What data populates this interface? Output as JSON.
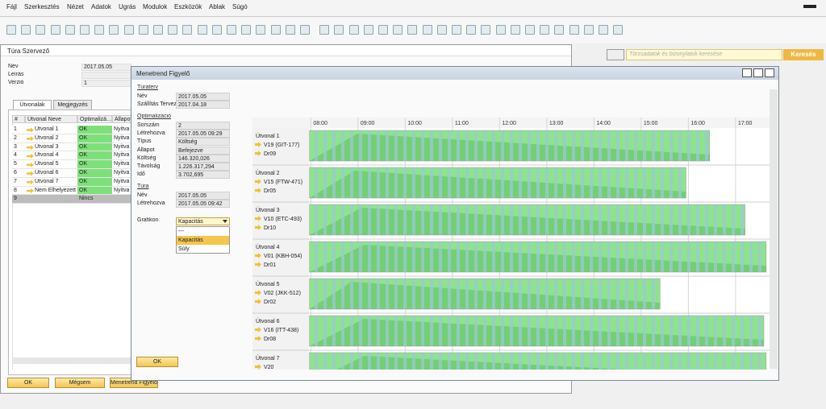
{
  "menu": [
    "Fájl",
    "Szerkesztés",
    "Nézet",
    "Adatok",
    "Ugrás",
    "Modulok",
    "Eszközök",
    "Ablak",
    "Súgó"
  ],
  "search": {
    "placeholder": "Törzsadatok és bizonylatok keresése",
    "button": "Keresés"
  },
  "tour_planner": {
    "title": "Túra Szervező",
    "fields": [
      {
        "label": "Név",
        "value": "2017.05.05"
      },
      {
        "label": "Leírás"
      },
      {
        "label": "Verzió",
        "value": "1"
      }
    ],
    "tabs": [
      "Útvonalak",
      "Megjegyzés"
    ],
    "table": {
      "columns": [
        "#",
        "Útvonal Neve",
        "Optimalizá...",
        "Állapot"
      ],
      "rows": [
        [
          "1",
          "Útvonal 1",
          "OK",
          "Nyitva"
        ],
        [
          "2",
          "Útvonal 2",
          "OK",
          "Nyitva"
        ],
        [
          "3",
          "Útvonal 3",
          "OK",
          "Nyitva"
        ],
        [
          "4",
          "Útvonal 4",
          "OK",
          "Nyitva"
        ],
        [
          "5",
          "Útvonal 5",
          "OK",
          "Nyitva"
        ],
        [
          "6",
          "Útvonal 6",
          "OK",
          "Nyitva"
        ],
        [
          "7",
          "Útvonal 7",
          "OK",
          "Nyitva"
        ],
        [
          "8",
          "Nem Elhelyezett",
          "OK",
          "Nyitva"
        ],
        [
          "9",
          null,
          "Nincs",
          null
        ]
      ]
    },
    "buttons": [
      "OK",
      "Mégsem",
      "Menetrend Figyelő"
    ]
  },
  "schedule_monitor": {
    "title": "Menetrend Figyelő",
    "sections": [
      {
        "heading": "Túraterv",
        "fields": [
          {
            "label": "Név",
            "value": "2017.05.05"
          },
          {
            "label": "Szállítás Terveze",
            "value": "2017.04.18"
          }
        ]
      },
      {
        "heading": "Optimalizáció",
        "fields": [
          {
            "label": "Sorszám",
            "value": "2"
          },
          {
            "label": "Létrehozva",
            "value": "2017.05.05 09:29"
          },
          {
            "label": "Típus",
            "value": "Költség"
          },
          {
            "label": "Állapot",
            "value": "Befejezve"
          },
          {
            "label": "Költség",
            "value": "146.320,026"
          },
          {
            "label": "Távolság",
            "value": "1.226.317,294"
          },
          {
            "label": "Idő",
            "value": "3.702,695"
          }
        ]
      },
      {
        "heading": "Túra",
        "fields": [
          {
            "label": "Név",
            "value": "2017.05.05"
          },
          {
            "label": "Létrehozva",
            "value": "2017.05.05 09:42"
          }
        ]
      }
    ],
    "chart_selector": {
      "label": "Grafikon",
      "selected": "Kapacitás",
      "options": [
        "---",
        "Kapacitás",
        "Súly"
      ]
    },
    "ok": "OK",
    "gantt": {
      "type": "gantt",
      "xlim": [
        7.96,
        17.72
      ],
      "xticks": [
        {
          "value": 8,
          "label": "08:00"
        },
        {
          "value": 9,
          "label": "09:00"
        },
        {
          "value": 10,
          "label": "10:00"
        },
        {
          "value": 11,
          "label": "11:00"
        },
        {
          "value": 12,
          "label": "12:00"
        },
        {
          "value": 13,
          "label": "13:00"
        },
        {
          "value": 14,
          "label": "14:00"
        },
        {
          "value": 15,
          "label": "15:00"
        },
        {
          "value": 16,
          "label": "16:00"
        },
        {
          "value": 17,
          "label": "17:00"
        }
      ],
      "rows": [
        {
          "name": "Útvonal 1",
          "vehicle": "V19  (GIT-177)",
          "driver": "Dr09",
          "start": 7.97,
          "end": 16.45
        },
        {
          "name": "Útvonal 2",
          "vehicle": "V15  (FTW-471)",
          "driver": "Dr05",
          "start": 7.97,
          "end": 15.95
        },
        {
          "name": "Útvonal 3",
          "vehicle": "V10  (ETC-493)",
          "driver": "Dr10",
          "start": 7.97,
          "end": 17.2
        },
        {
          "name": "Útvonal 4",
          "vehicle": "V01  (KBH-054)",
          "driver": "Dr01",
          "start": 7.97,
          "end": 17.65
        },
        {
          "name": "Útvonal 5",
          "vehicle": "V02  (JKK-512)",
          "driver": "Dr02",
          "start": 7.97,
          "end": 15.4
        },
        {
          "name": "Útvonal 6",
          "vehicle": "V16  (ITT-438)",
          "driver": "Dr08",
          "start": 7.97,
          "end": 17.6
        },
        {
          "name": "Útvonal 7",
          "vehicle": "V20",
          "start": 7.97,
          "end": 17.65
        }
      ]
    }
  }
}
